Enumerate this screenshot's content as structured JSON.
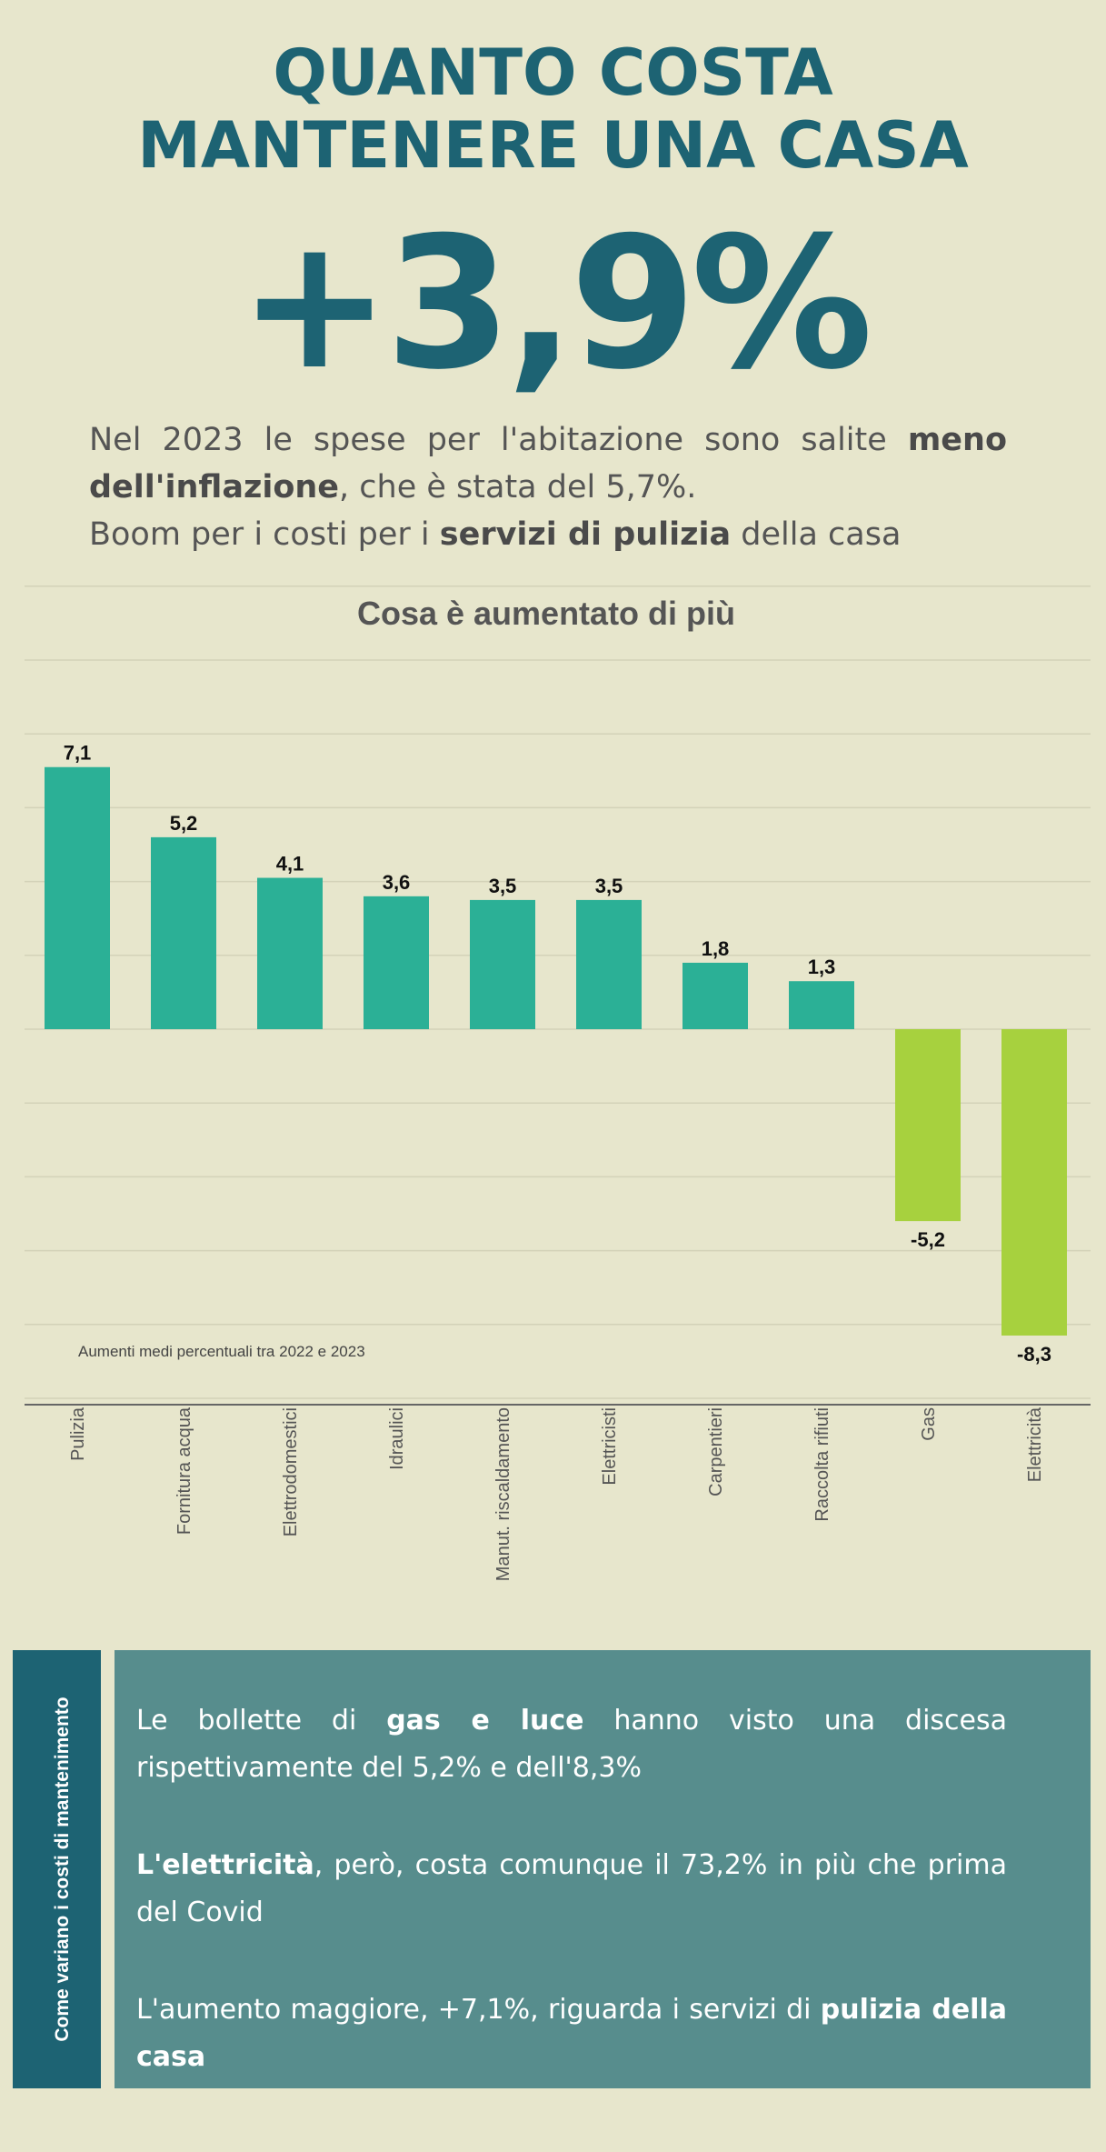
{
  "header": {
    "title_line1": "QUANTO COSTA",
    "title_line2": "MANTENERE UNA CASA",
    "headline_value": "+3,9%"
  },
  "intro": {
    "p1_a": "Nel 2023 le spese per l'abitazione sono salite ",
    "p1_b": "meno dell'inflazione",
    "p1_c": ", che è stata del 5,7%.",
    "p2_a": "Boom per i costi per i ",
    "p2_b": "servizi di pulizia",
    "p2_c": " della casa"
  },
  "chart_data": {
    "type": "bar",
    "title": "Cosa è aumentato di più",
    "note": "Aumenti medi percentuali tra 2022 e 2023",
    "categories": [
      "Pulizia",
      "Fornitura acqua",
      "Elettrodomestici",
      "Idraulici",
      "Manut. riscaldamento",
      "Elettricisti",
      "Carpentieri",
      "Raccolta rifiuti",
      "Gas",
      "Elettricità"
    ],
    "values": [
      7.1,
      5.2,
      4.1,
      3.6,
      3.5,
      3.5,
      1.8,
      1.3,
      -5.2,
      -8.3
    ],
    "value_labels": [
      "7,1",
      "5,2",
      "4,1",
      "3,6",
      "3,5",
      "3,5",
      "1,8",
      "1,3",
      "-5,2",
      "-8,3"
    ],
    "ylim": [
      -10,
      10
    ],
    "grid": true,
    "xlabel": "",
    "ylabel": "",
    "colors": {
      "positive": "#2bb096",
      "negative": "#a7d13e"
    }
  },
  "side_panel": {
    "label": "Come variano i costi di mantenimento"
  },
  "summary": {
    "p1_a": "Le bollette di ",
    "p1_b": "gas e luce",
    "p1_c": " hanno visto una discesa rispettivamente del 5,2% e dell'8,3%",
    "p2_a": "L'elettricità",
    "p2_b": ", però, costa comunque il 73,2% in più che prima del Covid",
    "p3_a": "L'aumento maggiore, +7,1%, riguarda i servizi di ",
    "p3_b": "pulizia della casa"
  },
  "colors": {
    "background": "#e7e6cc",
    "accent": "#1d6373",
    "panel": "#578d8d"
  }
}
